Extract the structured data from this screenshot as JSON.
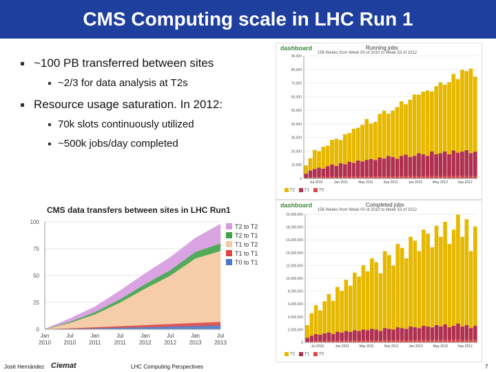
{
  "slide": {
    "title": "CMS Computing scale in LHC Run 1",
    "bullets": [
      {
        "level": 1,
        "text": "~100 PB transferred between sites"
      },
      {
        "level": 2,
        "text": "~2/3 for data analysis at T2s"
      },
      {
        "level": 1,
        "text": "Resource usage saturation. In 2012:"
      },
      {
        "level": 2,
        "text": "70k slots continuously utilized"
      },
      {
        "level": 2,
        "text": "~500k jobs/day completed"
      }
    ],
    "footer": {
      "author": "José Hernández",
      "logo_text": "Ciemat",
      "center": "LHC Computing Perspectives",
      "page": "7"
    }
  },
  "colors": {
    "title_bg": "#1f3f9e",
    "t2_to_t2": "#d79be0",
    "t2_to_t1": "#3fa34a",
    "t1_to_t2": "#f4c8a0",
    "t1_to_t1": "#d84848",
    "t0_to_t1": "#4a78c8",
    "job_yellow": "#e6b800",
    "job_red": "#b03050"
  },
  "chart_data": [
    {
      "type": "area",
      "title": "CMS data transfers between sites in LHC Run1",
      "x_ticks": [
        "Jan\n2010",
        "Jul\n2010",
        "Jan\n2011",
        "Jul\n2011",
        "Jan\n2012",
        "Jul\n2012",
        "Jan\n2013",
        "Jul\n2013"
      ],
      "ylim": [
        0,
        100
      ],
      "y_ticks": [
        "0",
        "25",
        "50",
        "75",
        "100"
      ],
      "stacked": true,
      "series": [
        {
          "name": "T0 to T1",
          "color": "#4a78c8",
          "values": [
            0.1,
            0.5,
            1.0,
            1.5,
            2.0,
            2.5,
            3.0,
            3.5
          ]
        },
        {
          "name": "T1 to T1",
          "color": "#d84848",
          "values": [
            0.1,
            0.5,
            1.0,
            1.5,
            2.0,
            2.5,
            3.0,
            3.5
          ]
        },
        {
          "name": "T1 to T2",
          "color": "#f4c8a0",
          "values": [
            0,
            5,
            12,
            22,
            34,
            45,
            60,
            66
          ]
        },
        {
          "name": "T2 to T1",
          "color": "#3fa34a",
          "values": [
            0,
            1,
            2,
            3,
            4,
            5,
            6,
            7
          ]
        },
        {
          "name": "T2 to T2",
          "color": "#d79be0",
          "values": [
            0,
            3,
            5,
            8,
            10,
            12,
            13,
            18
          ]
        }
      ]
    },
    {
      "type": "bar",
      "title": "Running jobs",
      "subtitle": "156 Weeks from Week 00 of 2010 to Week 53 of 2012",
      "logo": "dashboard",
      "ylim": [
        0,
        90000
      ],
      "y_ticks": [
        "0",
        "10,000",
        "20,000",
        "30,000",
        "40,000",
        "50,000",
        "60,000",
        "70,000",
        "80,000",
        "90,000"
      ],
      "x_ticks": [
        "Jul 2010",
        "Jan 2011",
        "May 2011",
        "Sep 2011",
        "Jan 2012",
        "May 2012",
        "Sep 2012"
      ],
      "series": [
        {
          "name": "T2",
          "color": "#e6b800",
          "values": [
            6000,
            9000,
            14000,
            12000,
            16000,
            15000,
            18000,
            20000,
            17000,
            22000,
            21000,
            25000,
            24000,
            27000,
            30000,
            26000,
            28000,
            32000,
            35000,
            31000,
            34000,
            38000,
            40000,
            37000,
            42000,
            45000,
            43000,
            46000,
            48000,
            44000,
            50000,
            52000,
            49000,
            53000,
            56000,
            54000,
            60000,
            58000,
            62000,
            55000
          ]
        },
        {
          "name": "T1",
          "color": "#b03050",
          "values": [
            3000,
            5000,
            6000,
            7000,
            6000,
            8000,
            9000,
            8000,
            10000,
            9000,
            11000,
            10000,
            12000,
            11000,
            12000,
            13000,
            12000,
            14000,
            13000,
            15000,
            14000,
            13000,
            15000,
            16000,
            14000,
            15000,
            17000,
            16000,
            15000,
            18000,
            16000,
            17000,
            18000,
            16000,
            19000,
            17000,
            18000,
            19000,
            17000,
            18000
          ]
        },
        {
          "name": "T0",
          "color": "#d84848",
          "values": [
            500,
            800,
            1000,
            900,
            1200,
            1000,
            1300,
            1100,
            1200,
            1400,
            1300,
            1500,
            1200,
            1400,
            1600,
            1300,
            1500,
            1400,
            1600,
            1500,
            1700,
            1400,
            1600,
            1500,
            1800,
            1600,
            1500,
            1700,
            1600,
            1800,
            1700,
            1500,
            1800,
            1700,
            1600,
            1900,
            1700,
            1800,
            1600,
            1700
          ]
        }
      ],
      "legend": [
        "T2",
        "T1",
        "T0"
      ]
    },
    {
      "type": "bar",
      "title": "Completed jobs",
      "subtitle": "156 Weeks from Week 00 of 2010 to Week 53 of 2012",
      "logo": "dashboard",
      "ylim": [
        0,
        20000000
      ],
      "y_ticks": [
        "0",
        "2,000,000",
        "4,000,000",
        "6,000,000",
        "8,000,000",
        "10,000,000",
        "12,000,000",
        "14,000,000",
        "16,000,000",
        "18,000,000",
        "20,000,000"
      ],
      "x_ticks": [
        "Jul 2010",
        "Jan 2011",
        "May 2011",
        "Sep 2011",
        "Jan 2012",
        "May 2012",
        "Sep 2012"
      ],
      "series": [
        {
          "name": "T2",
          "color": "#e6b800",
          "values": [
            2000000,
            3500000,
            4500000,
            3800000,
            5000000,
            6000000,
            5200000,
            7000000,
            6500000,
            8000000,
            7200000,
            9000000,
            8500000,
            10000000,
            9200000,
            11000000,
            10500000,
            9000000,
            12000000,
            11500000,
            10000000,
            13000000,
            12500000,
            11000000,
            14000000,
            13500000,
            12000000,
            15000000,
            14500000,
            12500000,
            15500000,
            14000000,
            16000000,
            13000000,
            15000000,
            17000000,
            14000000,
            16500000,
            12000000,
            15500000
          ]
        },
        {
          "name": "T1",
          "color": "#b03050",
          "values": [
            600000,
            900000,
            1100000,
            1000000,
            1200000,
            1300000,
            1100000,
            1400000,
            1300000,
            1500000,
            1400000,
            1600000,
            1500000,
            1700000,
            1600000,
            1800000,
            1700000,
            1500000,
            1900000,
            1800000,
            1700000,
            2000000,
            1900000,
            1800000,
            2100000,
            2000000,
            1900000,
            2200000,
            2100000,
            2000000,
            2300000,
            2100000,
            2400000,
            2000000,
            2200000,
            2500000,
            2100000,
            2300000,
            1900000,
            2200000
          ]
        },
        {
          "name": "T0",
          "color": "#d84848",
          "values": [
            100000,
            150000,
            200000,
            180000,
            220000,
            250000,
            200000,
            260000,
            240000,
            280000,
            250000,
            300000,
            270000,
            320000,
            290000,
            330000,
            310000,
            280000,
            340000,
            320000,
            300000,
            360000,
            340000,
            320000,
            380000,
            360000,
            340000,
            400000,
            380000,
            350000,
            410000,
            380000,
            420000,
            360000,
            400000,
            440000,
            380000,
            420000,
            340000,
            400000
          ]
        }
      ],
      "legend": [
        "T2",
        "T1",
        "T0"
      ]
    }
  ]
}
